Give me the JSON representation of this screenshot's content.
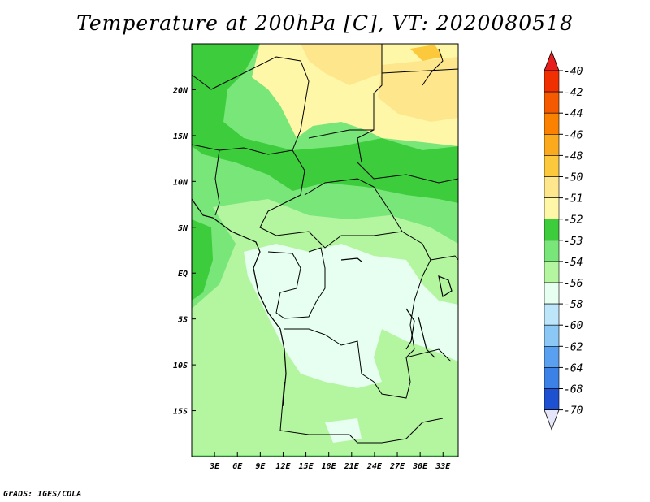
{
  "title": "Temperature at 200hPa [C], VT: 2020080518",
  "credit": "GrADS: IGES/COLA",
  "map": {
    "lon_range": [
      0,
      35
    ],
    "lat_range": [
      -20,
      25
    ],
    "lon_ticks": [
      {
        "value": 3,
        "label": "3E"
      },
      {
        "value": 6,
        "label": "6E"
      },
      {
        "value": 9,
        "label": "9E"
      },
      {
        "value": 12,
        "label": "12E"
      },
      {
        "value": 15,
        "label": "15E"
      },
      {
        "value": 18,
        "label": "18E"
      },
      {
        "value": 21,
        "label": "21E"
      },
      {
        "value": 24,
        "label": "24E"
      },
      {
        "value": 27,
        "label": "27E"
      },
      {
        "value": 30,
        "label": "30E"
      },
      {
        "value": 33,
        "label": "33E"
      }
    ],
    "lat_ticks": [
      {
        "value": 20,
        "label": "20N"
      },
      {
        "value": 15,
        "label": "15N"
      },
      {
        "value": 10,
        "label": "10N"
      },
      {
        "value": 5,
        "label": "5N"
      },
      {
        "value": 0,
        "label": "EQ"
      },
      {
        "value": -5,
        "label": "5S"
      },
      {
        "value": -10,
        "label": "10S"
      },
      {
        "value": -15,
        "label": "15S"
      }
    ]
  },
  "colorbar": {
    "levels": [
      {
        "label": "-40",
        "color": "#f03000"
      },
      {
        "label": "-42",
        "color": "#f55a00"
      },
      {
        "label": "-44",
        "color": "#fa8200"
      },
      {
        "label": "-46",
        "color": "#fbaa1e"
      },
      {
        "label": "-48",
        "color": "#fcc83c"
      },
      {
        "label": "-50",
        "color": "#fde68c"
      },
      {
        "label": "-51",
        "color": "#fff7a8"
      },
      {
        "label": "-52",
        "color": "#3ccc3c"
      },
      {
        "label": "-53",
        "color": "#78e678"
      },
      {
        "label": "-54",
        "color": "#b4f5a0"
      },
      {
        "label": "-56",
        "color": "#e6fff0"
      },
      {
        "label": "-58",
        "color": "#bee6fa"
      },
      {
        "label": "-60",
        "color": "#8cc8f5"
      },
      {
        "label": "-62",
        "color": "#5aa0f0"
      },
      {
        "label": "-64",
        "color": "#3c82e6"
      },
      {
        "label": "-68",
        "color": "#1e50d2"
      },
      {
        "label": "-70",
        "color": "#0a1e8c"
      }
    ],
    "top_arrow_color": "#e61e1e",
    "bottom_arrow_color": "#e6e6fa",
    "bottom_band_color": "#0a0a5a"
  }
}
